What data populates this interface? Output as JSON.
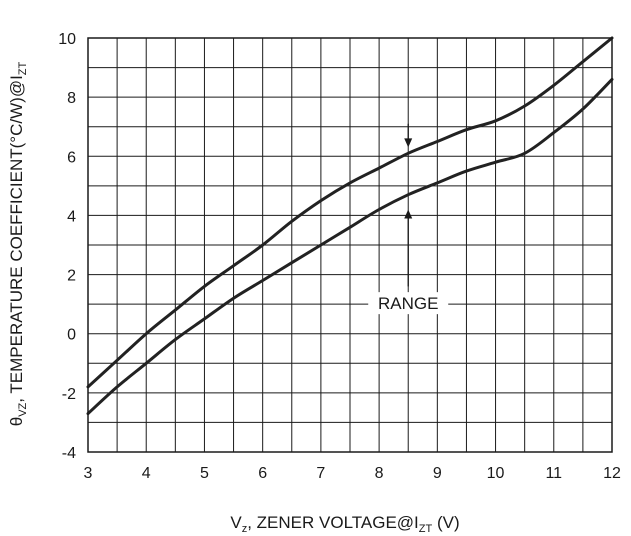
{
  "chart_data": {
    "type": "line",
    "xlabel": {
      "main": "V",
      "sub1": "z",
      "mid": ", ZENER VOLTAGE@I",
      "sub2": "ZT",
      "tail": " (V)"
    },
    "ylabel": {
      "main": "θ",
      "sub1": "VZ",
      "mid": ", TEMPERATURE COEFFICIENT(°C/W)@I",
      "sub2": "ZT"
    },
    "xlim": [
      3,
      12
    ],
    "ylim": [
      -4,
      10
    ],
    "x_ticks": [
      3,
      4,
      5,
      6,
      7,
      8,
      9,
      10,
      11,
      12
    ],
    "y_ticks": [
      -4,
      -2,
      0,
      2,
      4,
      6,
      8,
      10
    ],
    "x_minor_grid_step": 0.5,
    "y_minor_grid_step": 1,
    "grid": true,
    "series": [
      {
        "color": "#222222",
        "x": [
          3,
          3.5,
          4,
          4.5,
          5,
          5.5,
          6,
          6.5,
          7,
          7.5,
          8,
          8.5,
          9,
          9.5,
          10,
          10.5,
          11,
          11.5,
          12
        ],
        "y": [
          -1.8,
          -0.9,
          0.0,
          0.8,
          1.6,
          2.3,
          3.0,
          3.8,
          4.5,
          5.1,
          5.6,
          6.1,
          6.5,
          6.9,
          7.2,
          7.7,
          8.4,
          9.2,
          10.0
        ]
      },
      {
        "color": "#222222",
        "x": [
          3,
          3.5,
          4,
          4.5,
          5,
          5.5,
          6,
          6.5,
          7,
          7.5,
          8,
          8.5,
          9,
          9.5,
          10,
          10.5,
          11,
          11.5,
          12
        ],
        "y": [
          -2.7,
          -1.8,
          -1.0,
          -0.2,
          0.5,
          1.2,
          1.8,
          2.4,
          3.0,
          3.6,
          4.2,
          4.7,
          5.1,
          5.5,
          5.8,
          6.1,
          6.8,
          7.6,
          8.6
        ]
      }
    ],
    "annotations": [
      {
        "text": "RANGE",
        "x": 8.5,
        "y": 1.0
      }
    ],
    "arrows": [
      {
        "x": 8.5,
        "from_y": 7.1,
        "to_y": 6.3
      },
      {
        "x": 8.5,
        "from_y": 1.6,
        "to_y": 4.2
      }
    ]
  }
}
